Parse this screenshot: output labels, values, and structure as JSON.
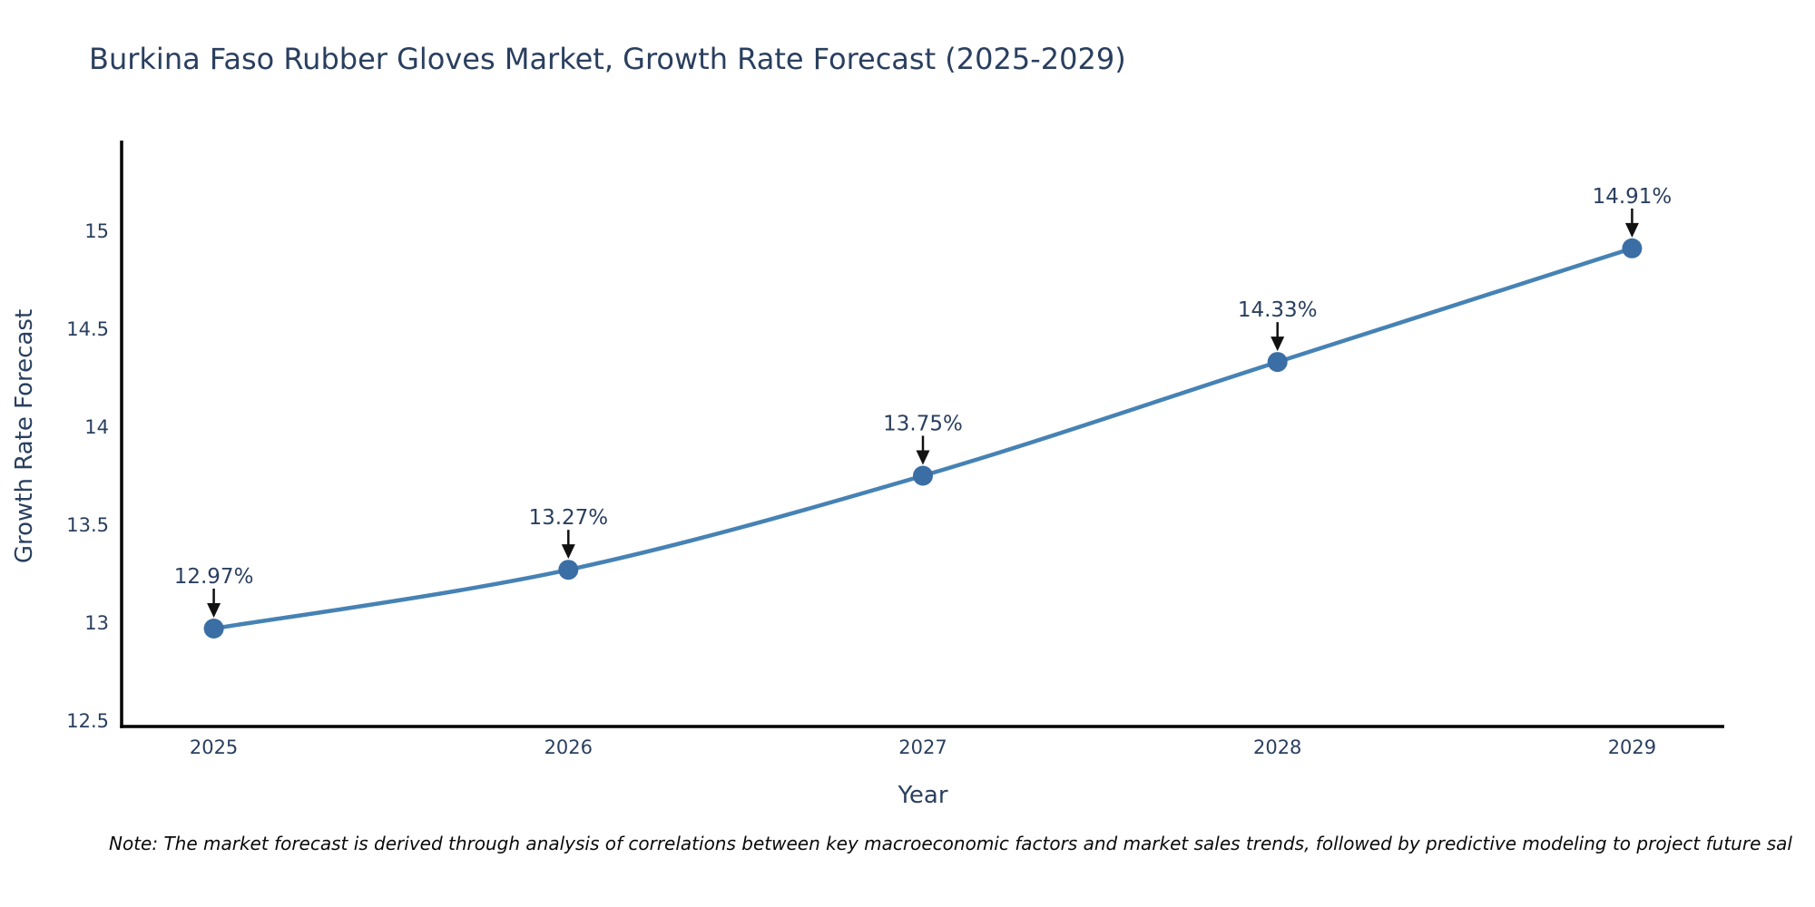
{
  "page": {
    "background": "#ffffff"
  },
  "chart_data": {
    "type": "line",
    "title": "Burkina Faso Rubber Gloves Market, Growth Rate Forecast (2025-2029)",
    "xlabel": "Year",
    "ylabel": "Growth Rate Forecast",
    "x": [
      2025,
      2026,
      2027,
      2028,
      2029
    ],
    "series": [
      {
        "name": "Growth Rate Forecast",
        "values": [
          12.97,
          13.27,
          13.75,
          14.33,
          14.91
        ]
      }
    ],
    "point_labels": [
      "12.97%",
      "13.27%",
      "13.75%",
      "14.33%",
      "14.91%"
    ],
    "x_tick_labels": [
      "2025",
      "2026",
      "2027",
      "2028",
      "2029"
    ],
    "y_tick_values": [
      12.5,
      13,
      13.5,
      14,
      14.5,
      15
    ],
    "y_tick_labels": [
      "12.5",
      "13",
      "13.5",
      "14",
      "14.5",
      "15"
    ],
    "xlim": [
      2024.74,
      2029.26
    ],
    "ylim": [
      12.47,
      15.46
    ],
    "grid": false,
    "legend": false,
    "line_shape": "spline",
    "line_color": "#4682b4",
    "marker_color": "#3a6ea5",
    "axis_line_color": "#000000",
    "text_color": "#2a3f5f",
    "annotation_color": "#2a3f5f",
    "arrow_color": "#111111"
  },
  "note": {
    "text": "Note: The market forecast is derived through analysis of correlations between key macroeconomic factors and market sales trends, followed by predictive modeling to project future sal"
  }
}
